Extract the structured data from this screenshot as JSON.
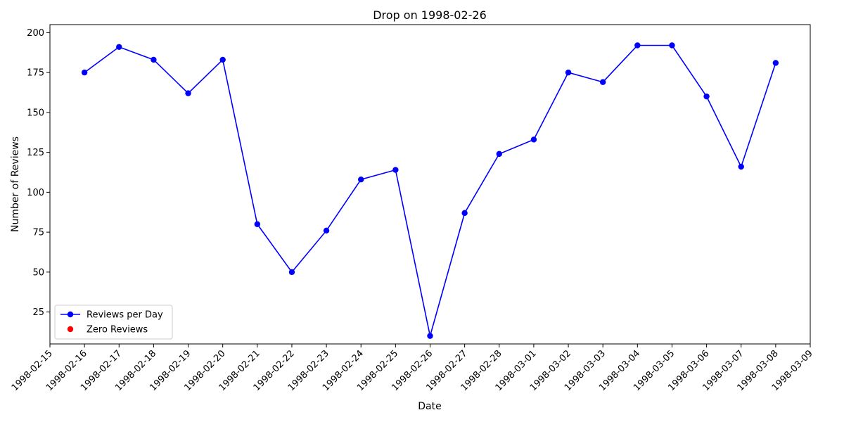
{
  "chart_data": {
    "type": "line",
    "title": "Drop on 1998-02-26",
    "xlabel": "Date",
    "ylabel": "Number of Reviews",
    "x_tick_labels": [
      "1998-02-15",
      "1998-02-16",
      "1998-02-17",
      "1998-02-18",
      "1998-02-19",
      "1998-02-20",
      "1998-02-21",
      "1998-02-22",
      "1998-02-23",
      "1998-02-24",
      "1998-02-25",
      "1998-02-26",
      "1998-02-27",
      "1998-02-28",
      "1998-03-01",
      "1998-03-02",
      "1998-03-03",
      "1998-03-04",
      "1998-03-05",
      "1998-03-06",
      "1998-03-07",
      "1998-03-08",
      "1998-03-09"
    ],
    "y_ticks": [
      25,
      50,
      75,
      100,
      125,
      150,
      175,
      200
    ],
    "ylim": [
      5,
      205
    ],
    "xlim": [
      "1998-02-15",
      "1998-03-09"
    ],
    "grid": false,
    "legend_position": "lower-left",
    "series": [
      {
        "name": "Reviews per Day",
        "color": "#0000ff",
        "marker": "circle",
        "x": [
          "1998-02-16",
          "1998-02-17",
          "1998-02-18",
          "1998-02-19",
          "1998-02-20",
          "1998-02-21",
          "1998-02-22",
          "1998-02-23",
          "1998-02-24",
          "1998-02-25",
          "1998-02-26",
          "1998-02-27",
          "1998-02-28",
          "1998-03-01",
          "1998-03-02",
          "1998-03-03",
          "1998-03-04",
          "1998-03-05",
          "1998-03-06",
          "1998-03-07",
          "1998-03-08"
        ],
        "values": [
          175,
          191,
          183,
          162,
          183,
          80,
          50,
          76,
          108,
          114,
          10,
          87,
          124,
          133,
          175,
          169,
          192,
          192,
          160,
          116,
          181
        ]
      },
      {
        "name": "Zero Reviews",
        "color": "#ff0000",
        "marker": "circle",
        "type": "scatter",
        "x": [],
        "values": []
      }
    ]
  }
}
